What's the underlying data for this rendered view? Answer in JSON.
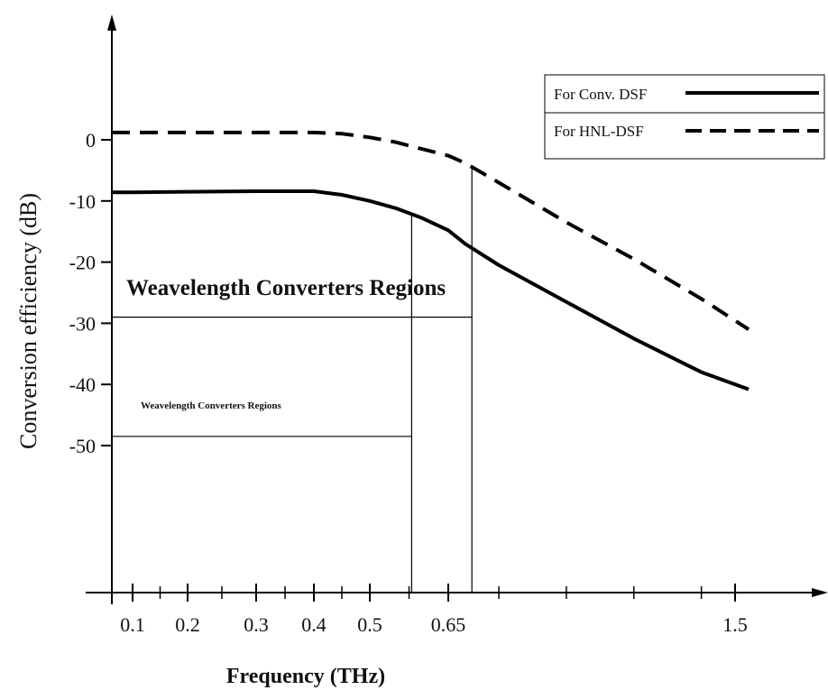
{
  "chart_data": {
    "type": "line",
    "xlabel": "Frequency (THz)",
    "ylabel": "Conversion efficiency (dB)",
    "x_ticks": [
      "0.1",
      "0.2",
      "0.3",
      "0.4",
      "0.5",
      "0.65",
      "1.5"
    ],
    "y_ticks": [
      "0",
      "-10",
      "-20",
      "-30",
      "-40",
      "-50"
    ],
    "y_tick_values": [
      0,
      -10,
      -20,
      -30,
      -40,
      -50
    ],
    "ylim": [
      -68,
      14
    ],
    "grid": false,
    "legend_position": "top-right",
    "series": [
      {
        "name": "For Conv. DSF",
        "style": "solid",
        "color": "#000000",
        "points": [
          [
            0.05,
            -8.6
          ],
          [
            0.1,
            -8.6
          ],
          [
            0.2,
            -8.5
          ],
          [
            0.3,
            -8.4
          ],
          [
            0.4,
            -8.4
          ],
          [
            0.45,
            -9.0
          ],
          [
            0.5,
            -10.0
          ],
          [
            0.55,
            -11.2
          ],
          [
            0.6,
            -12.8
          ],
          [
            0.65,
            -14.8
          ],
          [
            0.7,
            -17.0
          ],
          [
            0.8,
            -20.5
          ],
          [
            1.0,
            -26.5
          ],
          [
            1.2,
            -32.5
          ],
          [
            1.4,
            -38.0
          ],
          [
            1.55,
            -40.8
          ]
        ]
      },
      {
        "name": "For  HNL-DSF",
        "style": "dashed",
        "color": "#000000",
        "points": [
          [
            0.05,
            1.2
          ],
          [
            0.1,
            1.2
          ],
          [
            0.2,
            1.2
          ],
          [
            0.3,
            1.2
          ],
          [
            0.4,
            1.2
          ],
          [
            0.45,
            1.0
          ],
          [
            0.5,
            0.4
          ],
          [
            0.55,
            -0.4
          ],
          [
            0.6,
            -1.5
          ],
          [
            0.65,
            -2.6
          ],
          [
            0.7,
            -3.8
          ],
          [
            0.8,
            -7.0
          ],
          [
            1.0,
            -13.5
          ],
          [
            1.2,
            -19.5
          ],
          [
            1.4,
            -26.0
          ],
          [
            1.55,
            -31.0
          ]
        ]
      }
    ],
    "annotations": [
      "Weavelength Converters Regions",
      "Weavelength Converters Regions"
    ],
    "region_lines": {
      "upper": {
        "y": -29,
        "x_end": 0.72
      },
      "lower": {
        "y": -48.5,
        "x_end": 0.58
      },
      "verticals": [
        0.58,
        0.72
      ]
    }
  }
}
